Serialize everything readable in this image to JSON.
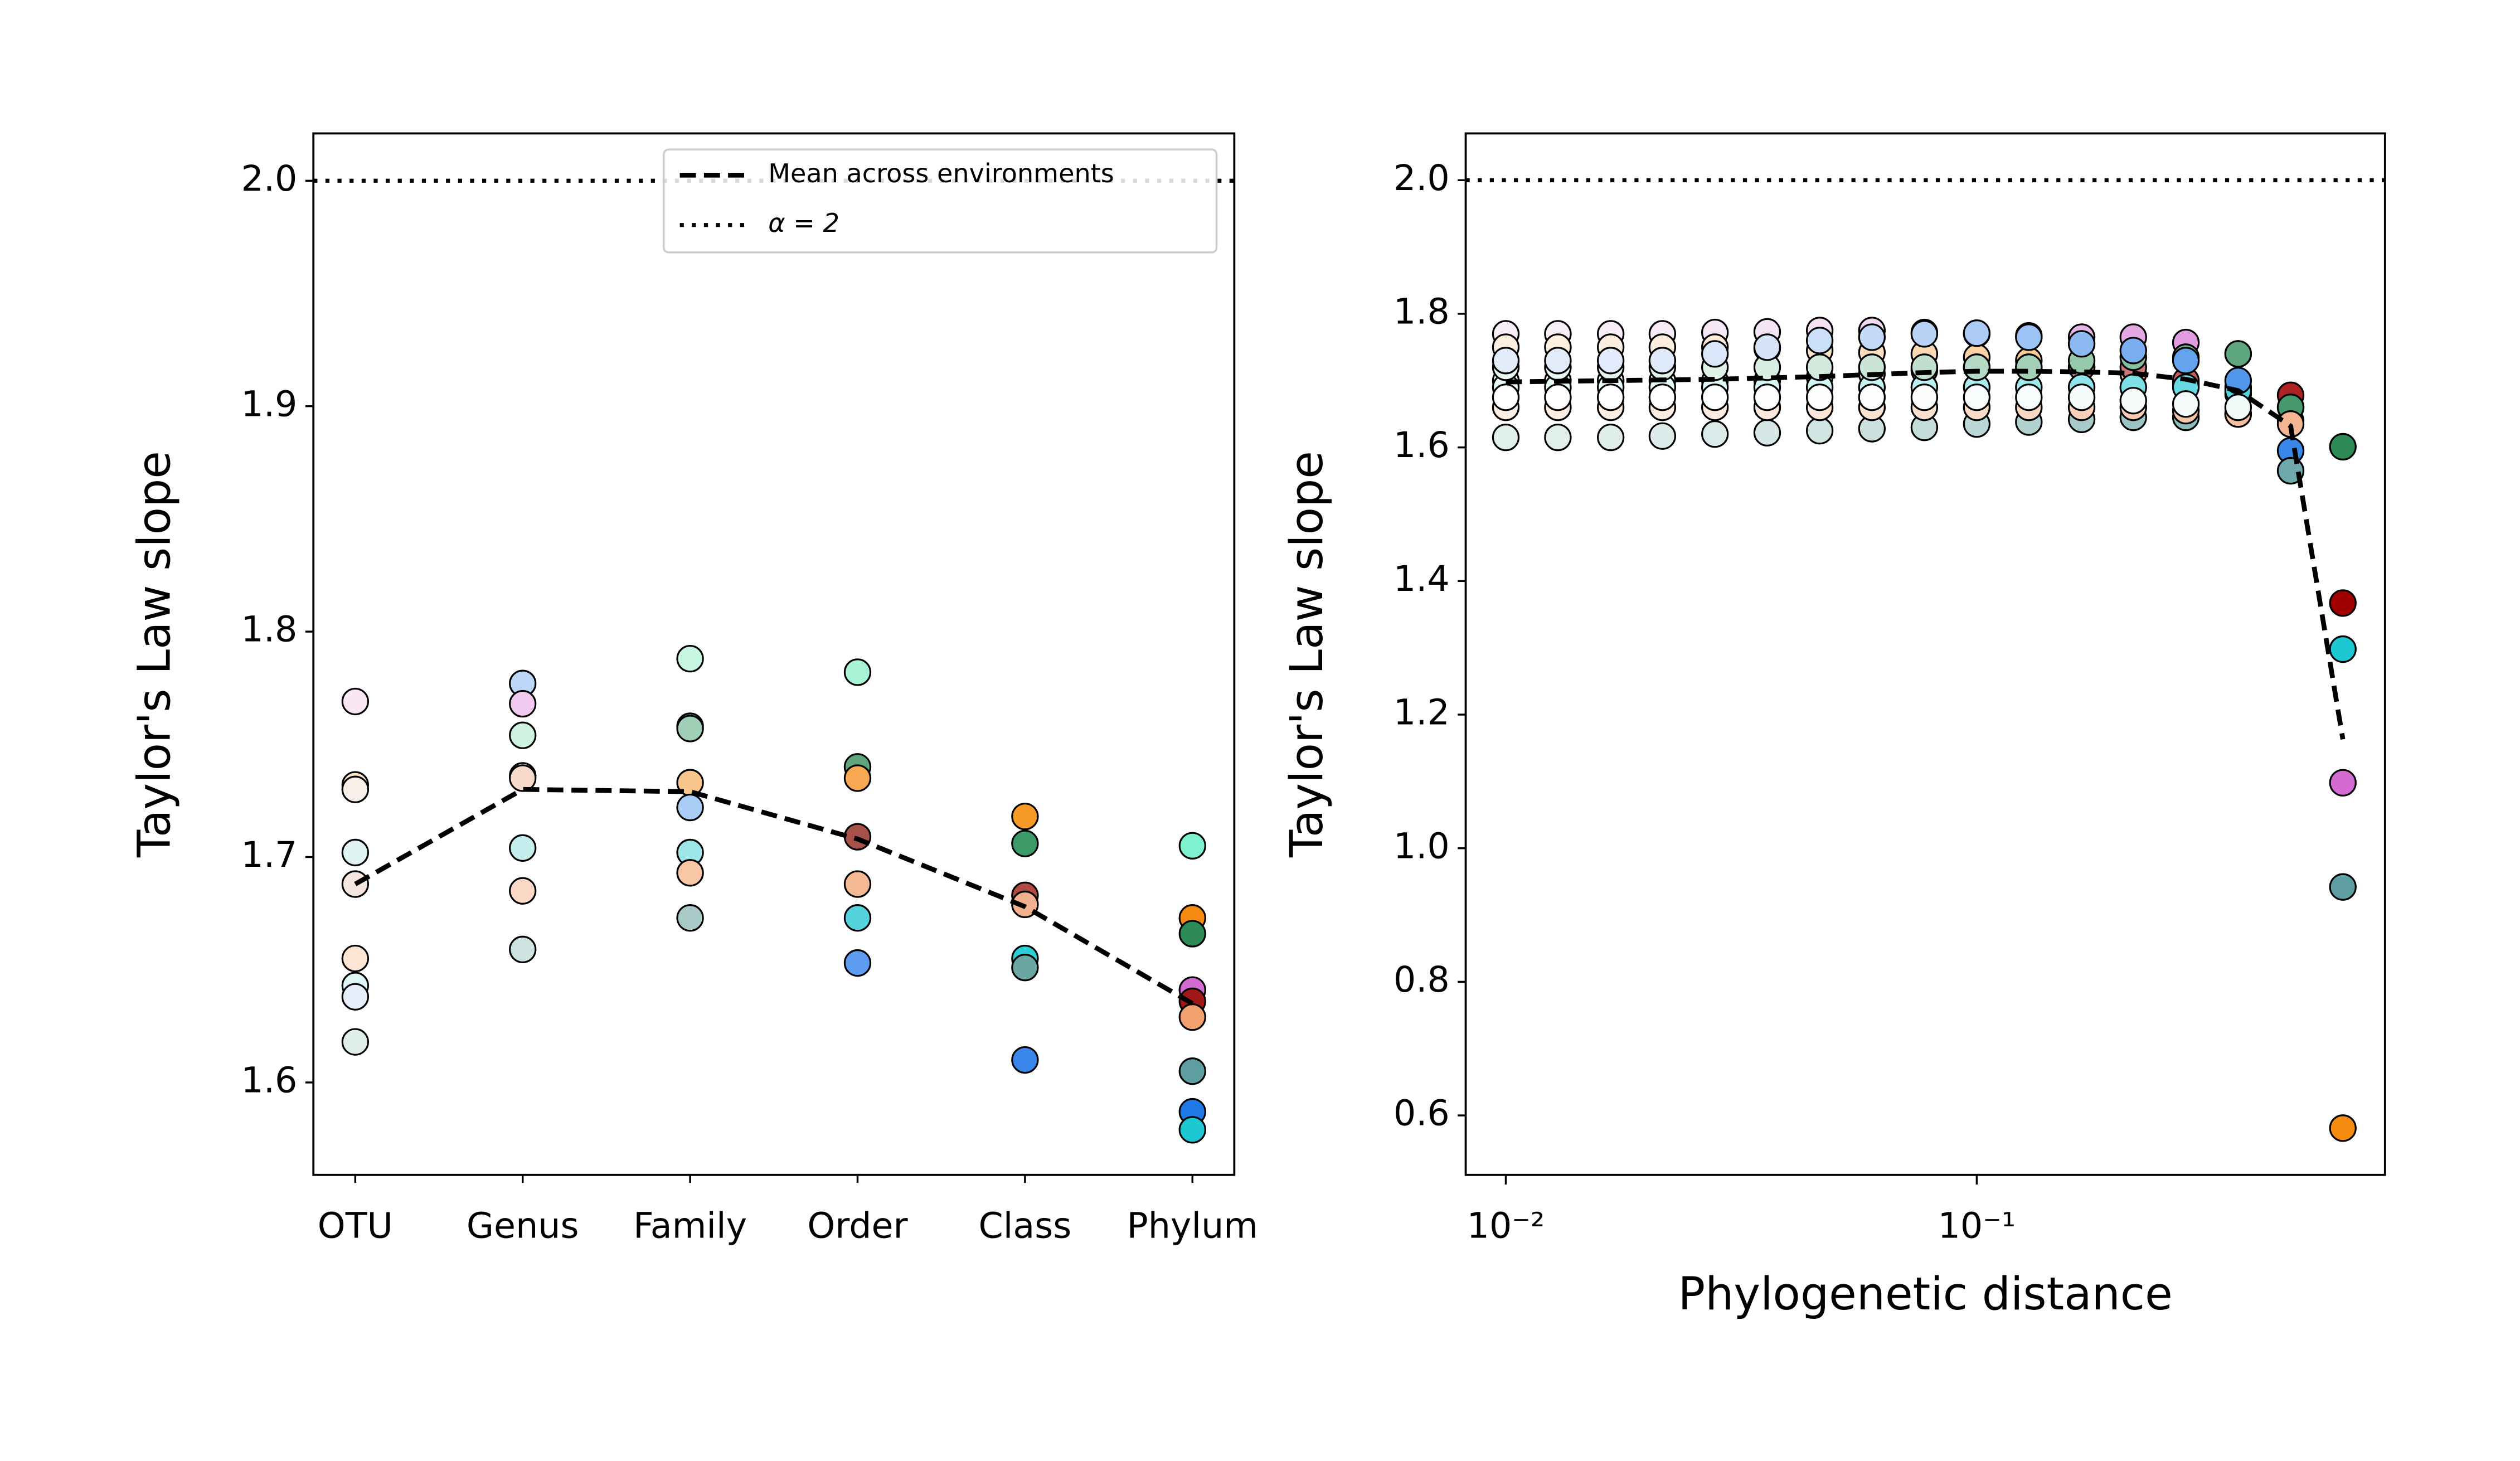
{
  "chart_data": [
    {
      "type": "scatter",
      "categories": [
        "OTU",
        "Genus",
        "Family",
        "Order",
        "Class",
        "Phylum"
      ],
      "ylabel": "Taylor's Law slope",
      "ylim": [
        1.559,
        2.021
      ],
      "yticks": [
        1.6,
        1.7,
        1.8,
        1.9,
        {
          "value": 2,
          "label": "2.0"
        }
      ],
      "points": [
        [
          {
            "value": 1.769,
            "color": "#fbe6f3"
          },
          {
            "value": 1.732,
            "color": "#fde3c8"
          },
          {
            "value": 1.73,
            "color": "#f9efea"
          },
          {
            "value": 1.702,
            "color": "#e0f5f3"
          },
          {
            "value": 1.688,
            "color": "#f6e4de"
          },
          {
            "value": 1.655,
            "color": "#fde6d5"
          },
          {
            "value": 1.643,
            "color": "#dff7f7"
          },
          {
            "value": 1.638,
            "color": "#e6eefb"
          },
          {
            "value": 1.618,
            "color": "#dfeeea"
          }
        ],
        [
          {
            "value": 1.777,
            "color": "#bcd6f7"
          },
          {
            "value": 1.768,
            "color": "#f2c9ef"
          },
          {
            "value": 1.754,
            "color": "#cdf3e0"
          },
          {
            "value": 1.736,
            "color": "#fcd3a8"
          },
          {
            "value": 1.735,
            "color": "#f6d9c9"
          },
          {
            "value": 1.704,
            "color": "#c4eeee"
          },
          {
            "value": 1.685,
            "color": "#fbd9c6"
          },
          {
            "value": 1.659,
            "color": "#cfe3e1"
          }
        ],
        [
          {
            "value": 1.788,
            "color": "#c7f7e3"
          },
          {
            "value": 1.758,
            "color": "#8bbfa5"
          },
          {
            "value": 1.757,
            "color": "#9fcfb6"
          },
          {
            "value": 1.733,
            "color": "#f9c68e"
          },
          {
            "value": 1.722,
            "color": "#a9cdf6"
          },
          {
            "value": 1.702,
            "color": "#9ce6e8"
          },
          {
            "value": 1.693,
            "color": "#f8c7a5"
          },
          {
            "value": 1.673,
            "color": "#a9c9c6"
          }
        ],
        [
          {
            "value": 1.782,
            "color": "#a8f3d6"
          },
          {
            "value": 1.74,
            "color": "#5fa67c"
          },
          {
            "value": 1.735,
            "color": "#f7a852"
          },
          {
            "value": 1.709,
            "color": "#a6524a"
          },
          {
            "value": 1.688,
            "color": "#f5b995"
          },
          {
            "value": 1.673,
            "color": "#55d3dc"
          },
          {
            "value": 1.653,
            "color": "#5d9cf0"
          }
        ],
        [
          {
            "value": 1.718,
            "color": "#f79a25"
          },
          {
            "value": 1.706,
            "color": "#3c9a66"
          },
          {
            "value": 1.683,
            "color": "#b34b42"
          },
          {
            "value": 1.679,
            "color": "#f3b08f"
          },
          {
            "value": 1.655,
            "color": "#2ccfd6"
          },
          {
            "value": 1.651,
            "color": "#6aa7a4"
          },
          {
            "value": 1.61,
            "color": "#3b86ea"
          }
        ],
        [
          {
            "value": 1.705,
            "color": "#7ef2ce"
          },
          {
            "value": 1.673,
            "color": "#f58a10"
          },
          {
            "value": 1.666,
            "color": "#2e8b57"
          },
          {
            "value": 1.641,
            "color": "#d36bd3"
          },
          {
            "value": 1.636,
            "color": "#a01818"
          },
          {
            "value": 1.629,
            "color": "#f2a06e"
          },
          {
            "value": 1.605,
            "color": "#5f9ea0"
          },
          {
            "value": 1.587,
            "color": "#1e78e6"
          },
          {
            "value": 1.579,
            "color": "#1ec8d2"
          }
        ]
      ],
      "mean": {
        "name": "Mean across environments",
        "color": "#000000",
        "linestyle": "dashed",
        "values": [
          1.688,
          1.73,
          1.729,
          1.708,
          1.678,
          1.635
        ]
      },
      "hline": {
        "name": "α = 2",
        "value": 2,
        "color": "#000000",
        "linestyle": "dotted"
      },
      "legend": "upper right"
    },
    {
      "type": "scatter",
      "xscale": "log",
      "xlabel": "Phylogenetic distance",
      "ylabel": "Taylor's Law slope",
      "x": [
        0.01,
        0.0129,
        0.0167,
        0.0215,
        0.0278,
        0.0359,
        0.0464,
        0.0599,
        0.0774,
        0.1,
        0.129,
        0.167,
        0.215,
        0.278,
        0.359,
        0.464,
        0.599
      ],
      "xlim": [
        0.00822,
        0.736
      ],
      "xticks": [
        {
          "value": 0.01,
          "label": "10⁻²"
        },
        {
          "value": 0.1,
          "label": "10⁻¹"
        }
      ],
      "ylim": [
        0.511,
        2.07
      ],
      "yticks": [
        0.6,
        0.8,
        {
          "value": 1,
          "label": "1.0"
        },
        1.2,
        1.4,
        1.6,
        1.8,
        {
          "value": 2,
          "label": "2.0"
        }
      ],
      "series": [
        {
          "colors": [
            "#f8eef8",
            "#d36bd3"
          ],
          "values": [
            1.77,
            1.77,
            1.77,
            1.77,
            1.772,
            1.773,
            1.775,
            1.775,
            1.772,
            1.77,
            1.767,
            1.765,
            1.765,
            1.757,
            1.74,
            1.66,
            1.098
          ]
        },
        {
          "colors": [
            "#fdeee0",
            "#f58a10"
          ],
          "values": [
            1.75,
            1.75,
            1.75,
            1.75,
            1.75,
            1.748,
            1.745,
            1.742,
            1.74,
            1.735,
            1.73,
            1.72,
            1.71,
            1.695,
            1.68,
            1.64,
            0.581
          ]
        },
        {
          "colors": [
            "#ffffff",
            "#a00000"
          ],
          "values": [
            1.7,
            1.7,
            1.7,
            1.7,
            1.7,
            1.7,
            1.705,
            1.71,
            1.715,
            1.72,
            1.72,
            1.72,
            1.72,
            1.7,
            1.69,
            1.678,
            1.367
          ]
        },
        {
          "colors": [
            "#e6fbfb",
            "#1ec8d2"
          ],
          "values": [
            1.69,
            1.69,
            1.69,
            1.69,
            1.69,
            1.69,
            1.69,
            1.69,
            1.69,
            1.69,
            1.69,
            1.69,
            1.69,
            1.69,
            1.685,
            1.66,
            1.298
          ]
        },
        {
          "colors": [
            "#e8f7ef",
            "#2e8b57"
          ],
          "values": [
            1.72,
            1.72,
            1.72,
            1.72,
            1.72,
            1.72,
            1.72,
            1.72,
            1.72,
            1.72,
            1.72,
            1.73,
            1.735,
            1.735,
            1.74,
            1.66,
            1.601
          ]
        },
        {
          "colors": [
            "#e3ecfb",
            "#1e78e6"
          ],
          "values": [
            1.73,
            1.73,
            1.73,
            1.73,
            1.74,
            1.75,
            1.76,
            1.765,
            1.77,
            1.771,
            1.765,
            1.755,
            1.745,
            1.73,
            1.7,
            1.595,
            null
          ]
        },
        {
          "colors": [
            "#e0eeec",
            "#5f9ea0"
          ],
          "values": [
            1.615,
            1.615,
            1.615,
            1.617,
            1.62,
            1.622,
            1.625,
            1.628,
            1.63,
            1.635,
            1.638,
            1.642,
            1.645,
            1.645,
            1.65,
            1.565,
            0.942
          ]
        },
        {
          "colors": [
            "#fdeee3",
            "#f3ad86"
          ],
          "values": [
            1.66,
            1.66,
            1.66,
            1.66,
            1.66,
            1.66,
            1.66,
            1.66,
            1.66,
            1.66,
            1.66,
            1.66,
            1.66,
            1.655,
            1.65,
            1.635,
            null
          ]
        },
        {
          "colors": [
            "#ffffff",
            "#eef7f7"
          ],
          "values": [
            1.675,
            1.675,
            1.675,
            1.675,
            1.675,
            1.675,
            1.675,
            1.675,
            1.675,
            1.675,
            1.675,
            1.675,
            1.67,
            1.665,
            1.66,
            null,
            null
          ]
        }
      ],
      "mean": {
        "color": "#000000",
        "linestyle": "dashed",
        "values": [
          1.698,
          1.699,
          1.7,
          1.701,
          1.702,
          1.704,
          1.706,
          1.709,
          1.712,
          1.714,
          1.714,
          1.713,
          1.711,
          1.702,
          1.685,
          1.632,
          1.163
        ]
      },
      "hline": {
        "value": 2,
        "color": "#000000",
        "linestyle": "dotted"
      }
    }
  ]
}
